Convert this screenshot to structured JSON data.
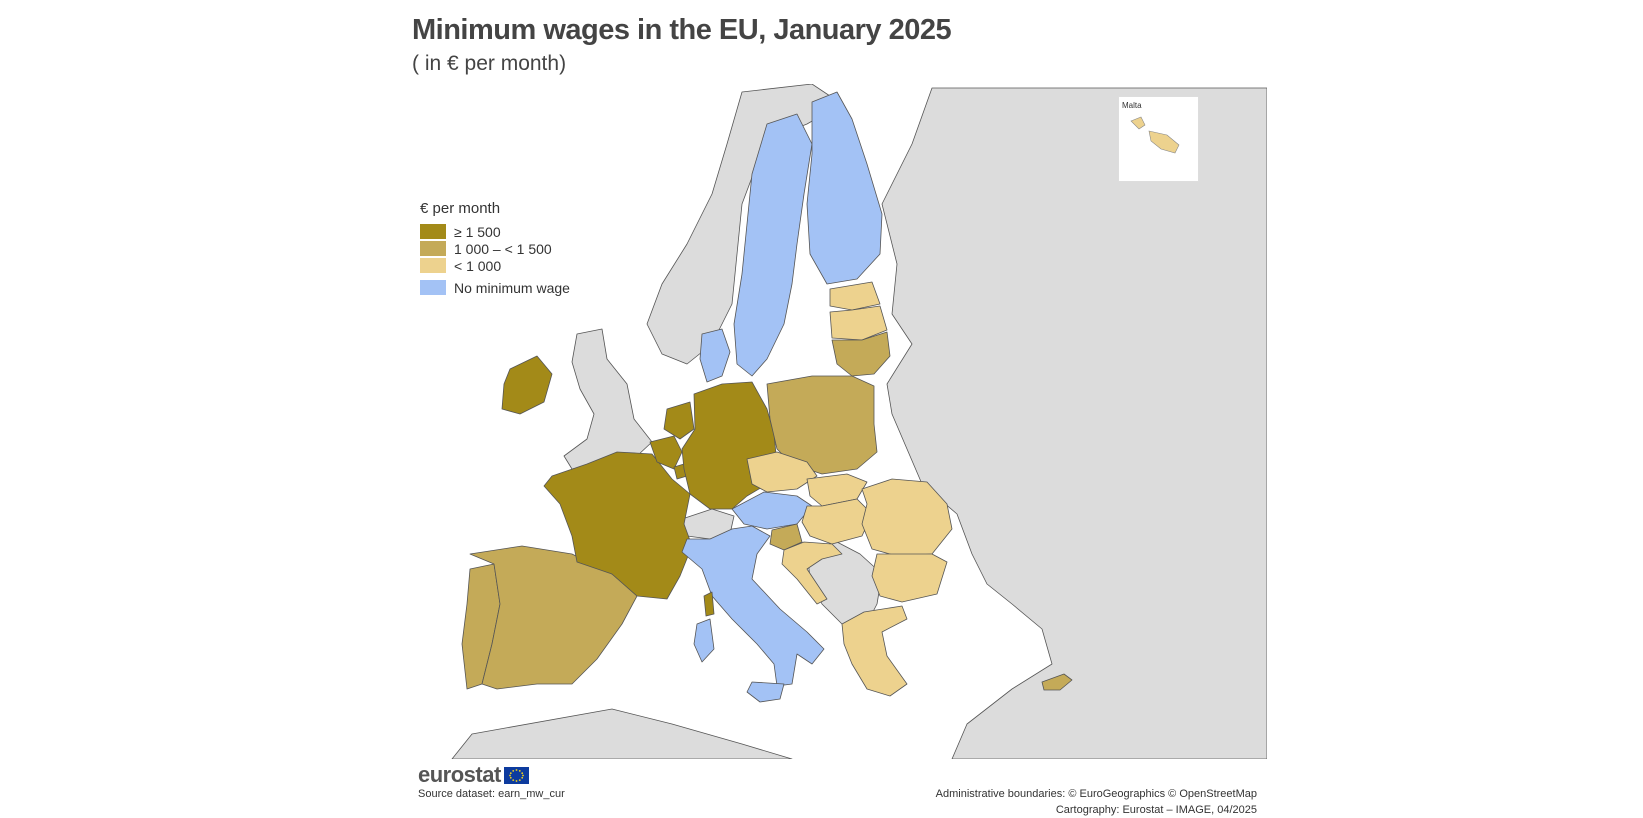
{
  "title": "Minimum wages in the EU, January 2025",
  "subtitle": "( in € per month)",
  "legend": {
    "title": "€ per month",
    "items": [
      {
        "label": "≥ 1 500",
        "color": "#a38a18"
      },
      {
        "label": "1 000 – < 1 500",
        "color": "#c4aa58"
      },
      {
        "label": "< 1 000",
        "color": "#edd28e"
      },
      {
        "label": "No minimum wage",
        "color": "#a3c2f5"
      }
    ]
  },
  "inset": {
    "label": "Malta"
  },
  "logo": {
    "text": "eurostat"
  },
  "source": "Source dataset: earn_mw_cur",
  "credits": {
    "line1": "Administrative boundaries: © EuroGeographics © OpenStreetMap",
    "line2": "Cartography: Eurostat – IMAGE, 04/2025"
  },
  "colors": {
    "high": "#a38a18",
    "mid": "#c4aa58",
    "low": "#edd28e",
    "none": "#a3c2f5",
    "nonEU": "#dcdcdc",
    "sea": "#ffffff"
  },
  "countries": [
    {
      "name": "Ireland",
      "category": "high"
    },
    {
      "name": "France",
      "category": "high"
    },
    {
      "name": "Germany",
      "category": "high"
    },
    {
      "name": "Belgium",
      "category": "high"
    },
    {
      "name": "Netherlands",
      "category": "high"
    },
    {
      "name": "Luxembourg",
      "category": "high"
    },
    {
      "name": "Spain",
      "category": "mid"
    },
    {
      "name": "Portugal",
      "category": "mid"
    },
    {
      "name": "Poland",
      "category": "mid"
    },
    {
      "name": "Lithuania",
      "category": "mid"
    },
    {
      "name": "Slovenia",
      "category": "mid"
    },
    {
      "name": "Cyprus",
      "category": "mid"
    },
    {
      "name": "Latvia",
      "category": "low"
    },
    {
      "name": "Estonia",
      "category": "low"
    },
    {
      "name": "Czechia",
      "category": "low"
    },
    {
      "name": "Slovakia",
      "category": "low"
    },
    {
      "name": "Hungary",
      "category": "low"
    },
    {
      "name": "Croatia",
      "category": "low"
    },
    {
      "name": "Romania",
      "category": "low"
    },
    {
      "name": "Bulgaria",
      "category": "low"
    },
    {
      "name": "Greece",
      "category": "low"
    },
    {
      "name": "Malta",
      "category": "low"
    },
    {
      "name": "Sweden",
      "category": "none"
    },
    {
      "name": "Finland",
      "category": "none"
    },
    {
      "name": "Denmark",
      "category": "none"
    },
    {
      "name": "Austria",
      "category": "none"
    },
    {
      "name": "Italy",
      "category": "none"
    }
  ]
}
